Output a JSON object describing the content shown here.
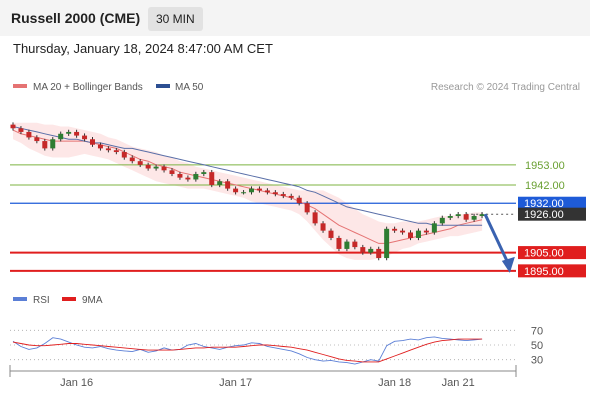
{
  "header": {
    "title": "Russell 2000 (CME)",
    "interval": "30 MIN",
    "datetime": "Thursday, January 18, 2024 8:47:00 AM CET"
  },
  "legend": {
    "bollinger": "MA 20 + Bollinger Bands",
    "ma50": "MA 50",
    "credit": "Research © 2024 Trading Central"
  },
  "rsi_legend": {
    "rsi": "RSI",
    "ma9": "9MA"
  },
  "colors": {
    "up": "#2e7d32",
    "down": "#c62828",
    "ma50": "#5a6fa8",
    "ma20": "#e57373",
    "band": "#fde3e3",
    "pivot": "#1e5bd8",
    "support": "#e01e1e",
    "resistance": "#7cb342",
    "last": "#333333",
    "arrow": "#3a62b0"
  },
  "chart_data": {
    "type": "candlestick",
    "y_range": [
      1890,
      1983
    ],
    "x_labels": [
      {
        "t": 8,
        "label": "Jan 16"
      },
      {
        "t": 28,
        "label": "Jan 17"
      },
      {
        "t": 48,
        "label": "Jan 18"
      },
      {
        "t": 56,
        "label": "Jan 21"
      }
    ],
    "levels": [
      {
        "value": 1953.0,
        "label": "1953.00",
        "kind": "resistance"
      },
      {
        "value": 1942.0,
        "label": "1942.00",
        "kind": "resistance"
      },
      {
        "value": 1932.0,
        "label": "1932.00",
        "kind": "pivot"
      },
      {
        "value": 1926.0,
        "label": "1926.00",
        "kind": "last"
      },
      {
        "value": 1905.0,
        "label": "1905.00",
        "kind": "support"
      },
      {
        "value": 1895.0,
        "label": "1895.00",
        "kind": "support"
      }
    ],
    "close": [
      1973,
      1971,
      1968,
      1966,
      1962,
      1967,
      1970,
      1971,
      1969,
      1967,
      1964,
      1962,
      1961,
      1960,
      1957,
      1955,
      1953,
      1951,
      1952,
      1950,
      1948,
      1946,
      1945,
      1948,
      1949,
      1942,
      1944,
      1940,
      1938,
      1938,
      1940,
      1939,
      1938,
      1937,
      1936,
      1935,
      1932,
      1927,
      1921,
      1917,
      1913,
      1907,
      1911,
      1908,
      1905,
      1907,
      1902,
      1918,
      1917,
      1916,
      1913,
      1917,
      1916,
      1921,
      1924,
      1925,
      1926,
      1923,
      1925,
      1926
    ],
    "ma20": [
      1972,
      1970,
      1969,
      1968,
      1967,
      1966,
      1966,
      1966,
      1966,
      1966,
      1965,
      1964,
      1963,
      1962,
      1960,
      1958,
      1956,
      1955,
      1953,
      1952,
      1951,
      1949,
      1948,
      1947,
      1946,
      1945,
      1944,
      1943,
      1942,
      1941,
      1940,
      1939,
      1938,
      1937,
      1936,
      1935,
      1933,
      1931,
      1929,
      1926,
      1923,
      1920,
      1918,
      1916,
      1914,
      1912,
      1910,
      1910,
      1911,
      1912,
      1913,
      1914,
      1915,
      1916,
      1917,
      1918,
      1920,
      1921,
      1922,
      1923
    ],
    "band_upper": [
      1976,
      1976,
      1976,
      1976,
      1975,
      1975,
      1974,
      1974,
      1973,
      1972,
      1971,
      1970,
      1968,
      1967,
      1965,
      1963,
      1962,
      1961,
      1960,
      1958,
      1957,
      1955,
      1954,
      1952,
      1951,
      1950,
      1949,
      1948,
      1947,
      1946,
      1945,
      1944,
      1943,
      1942,
      1941,
      1940,
      1939,
      1939,
      1939,
      1939,
      1937,
      1935,
      1932,
      1929,
      1926,
      1924,
      1922,
      1921,
      1921,
      1922,
      1922,
      1922,
      1923,
      1924,
      1925,
      1925,
      1926,
      1926,
      1927,
      1927
    ],
    "band_lower": [
      1967,
      1965,
      1962,
      1960,
      1958,
      1957,
      1957,
      1957,
      1958,
      1959,
      1958,
      1957,
      1956,
      1954,
      1952,
      1950,
      1948,
      1946,
      1944,
      1943,
      1942,
      1941,
      1940,
      1940,
      1940,
      1939,
      1938,
      1937,
      1936,
      1935,
      1933,
      1932,
      1931,
      1930,
      1929,
      1928,
      1926,
      1922,
      1917,
      1912,
      1908,
      1904,
      1902,
      1901,
      1901,
      1901,
      1902,
      1903,
      1905,
      1907,
      1908,
      1910,
      1911,
      1912,
      1913,
      1914,
      1914,
      1915,
      1916,
      1917
    ],
    "ma50": [
      1974,
      1973,
      1972,
      1971,
      1970,
      1969,
      1968,
      1967,
      1967,
      1966,
      1965,
      1965,
      1964,
      1963,
      1962,
      1962,
      1961,
      1960,
      1959,
      1958,
      1957,
      1956,
      1955,
      1954,
      1953,
      1952,
      1951,
      1950,
      1949,
      1948,
      1947,
      1946,
      1945,
      1944,
      1943,
      1942,
      1941,
      1939,
      1938,
      1936,
      1934,
      1932,
      1930,
      1929,
      1928,
      1927,
      1926,
      1925,
      1924,
      1923,
      1922,
      1921,
      1921,
      1920,
      1920,
      1920,
      1920,
      1920,
      1920,
      1920
    ],
    "forecast": [
      {
        "t": 59,
        "value": 1926
      },
      {
        "t": 63,
        "value": 1895
      }
    ],
    "rsi": {
      "range": [
        20,
        80
      ],
      "ticks": [
        70,
        50,
        30
      ],
      "values": [
        55,
        48,
        44,
        46,
        52,
        60,
        58,
        54,
        50,
        47,
        46,
        48,
        45,
        43,
        42,
        41,
        44,
        40,
        42,
        46,
        43,
        44,
        50,
        52,
        48,
        46,
        44,
        47,
        49,
        50,
        53,
        52,
        48,
        46,
        44,
        42,
        38,
        33,
        30,
        28,
        29,
        27,
        26,
        24,
        27,
        30,
        28,
        49,
        55,
        56,
        58,
        57,
        60,
        61,
        59,
        58,
        57,
        56,
        57,
        58
      ],
      "ma9": [
        54,
        52,
        50,
        49,
        49,
        50,
        51,
        52,
        52,
        51,
        50,
        49,
        48,
        47,
        46,
        45,
        44,
        43,
        43,
        43,
        43,
        44,
        45,
        46,
        46,
        47,
        47,
        47,
        47,
        48,
        49,
        50,
        50,
        49,
        48,
        47,
        45,
        43,
        40,
        37,
        34,
        31,
        29,
        28,
        27,
        27,
        27,
        31,
        35,
        39,
        43,
        47,
        51,
        54,
        56,
        57,
        58,
        58,
        58,
        58
      ]
    }
  }
}
